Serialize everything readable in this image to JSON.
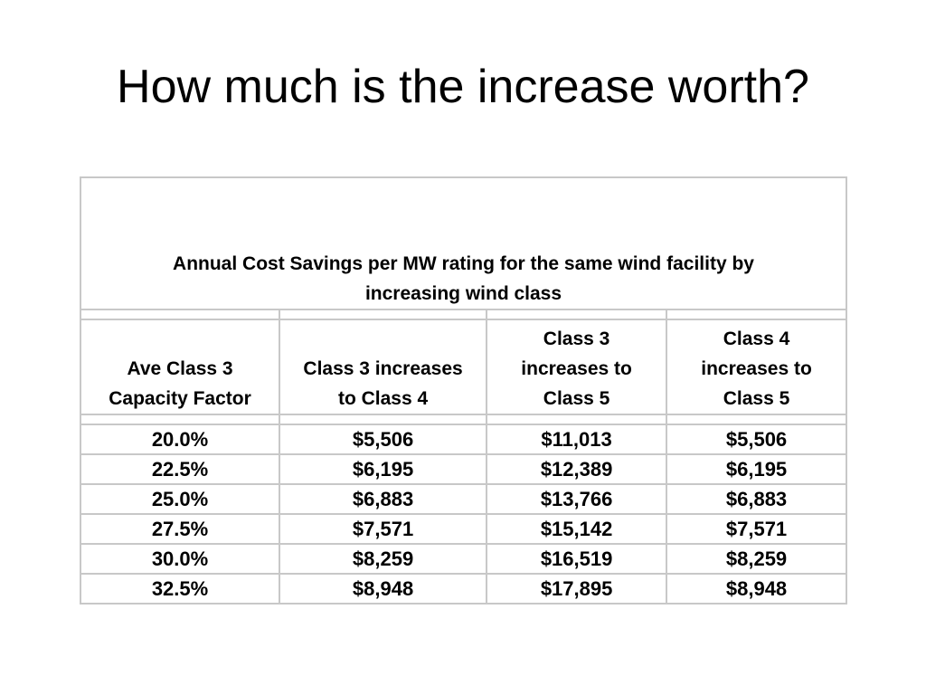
{
  "slide": {
    "title": "How much is the increase worth?"
  },
  "table": {
    "caption_lines": [
      "Annual Cost Savings per MW rating for the same wind facility by",
      "increasing wind class"
    ],
    "headers": [
      [
        "Ave Class 3",
        "Capacity Factor"
      ],
      [
        "Class 3 increases",
        "to Class 4"
      ],
      [
        "Class 3",
        "increases to",
        "Class 5"
      ],
      [
        "Class 4",
        "increases to",
        "Class 5"
      ]
    ],
    "rows": [
      [
        "20.0%",
        "$5,506",
        "$11,013",
        "$5,506"
      ],
      [
        "22.5%",
        "$6,195",
        "$12,389",
        "$6,195"
      ],
      [
        "25.0%",
        "$6,883",
        "$13,766",
        "$6,883"
      ],
      [
        "27.5%",
        "$7,571",
        "$15,142",
        "$7,571"
      ],
      [
        "30.0%",
        "$8,259",
        "$16,519",
        "$8,259"
      ],
      [
        "32.5%",
        "$8,948",
        "$17,895",
        "$8,948"
      ]
    ],
    "border_color": "#c8c8c8"
  }
}
